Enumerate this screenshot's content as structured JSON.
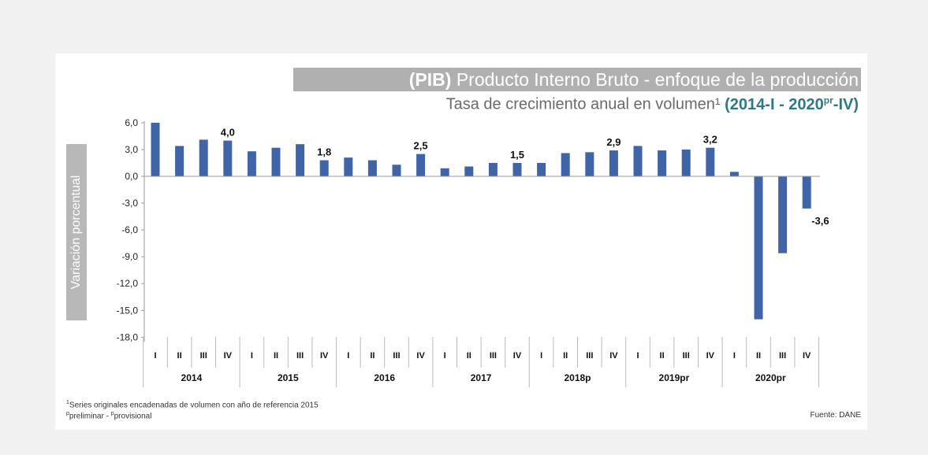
{
  "title_bold": "(PIB)",
  "title_rest": " Producto Interno Bruto  - enfoque de la producción",
  "subtitle_main": "Tasa de crecimiento anual en volumen",
  "subtitle_mark": "¹",
  "subtitle_range_a": "(2014-I - 2020",
  "subtitle_range_sup": "pr",
  "subtitle_range_b": "-IV)",
  "footnote_1_mark": "1",
  "footnote_1": "Series originales encadenadas de volumen con año de referencia 2015",
  "footnote_2_mark_a": "p",
  "footnote_2_a": "preliminar - ",
  "footnote_2_mark_b": "p",
  "footnote_2_b": "provisional",
  "source": "Fuente: DANE",
  "colors": {
    "bar": "#3f64a8",
    "title_bg": "#b0b0b0",
    "highlight": "#2c7a84"
  },
  "chart_data": {
    "type": "bar",
    "ylabel": "Variación porcentual",
    "ylim": [
      -18.0,
      6.0
    ],
    "yticks": [
      "6,0",
      "3,0",
      "0,0",
      "-3,0",
      "-6,0",
      "-9,0",
      "-12,0",
      "-15,0",
      "-18,0"
    ],
    "ytick_values": [
      6,
      3,
      0,
      -3,
      -6,
      -9,
      -12,
      -15,
      -18
    ],
    "quarters": [
      "I",
      "II",
      "III",
      "IV"
    ],
    "years": [
      "2014",
      "2015",
      "2016",
      "2017",
      "2018p",
      "2019pr",
      "2020pr"
    ],
    "values": [
      6.0,
      3.4,
      4.1,
      4.0,
      2.8,
      3.2,
      3.6,
      1.8,
      2.1,
      1.8,
      1.3,
      2.5,
      0.9,
      1.1,
      1.5,
      1.5,
      1.5,
      2.6,
      2.7,
      2.9,
      3.4,
      2.9,
      3.0,
      3.2,
      0.5,
      -16.0,
      -8.6,
      -3.6
    ],
    "data_labels": [
      {
        "index": 3,
        "text": "4,0"
      },
      {
        "index": 7,
        "text": "1,8"
      },
      {
        "index": 11,
        "text": "2,5"
      },
      {
        "index": 15,
        "text": "1,5"
      },
      {
        "index": 19,
        "text": "2,9"
      },
      {
        "index": 23,
        "text": "3,2"
      },
      {
        "index": 27,
        "text": "-3,6"
      }
    ],
    "grid": false,
    "legend": "none"
  }
}
